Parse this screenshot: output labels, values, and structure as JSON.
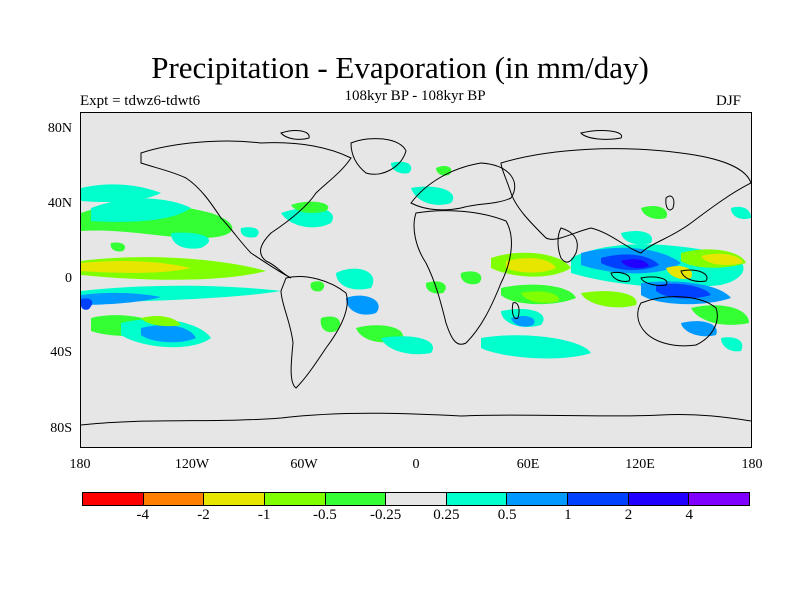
{
  "title": "Precipitation - Evaporation (in mm/day)",
  "subtitle": "108kyr BP - 108kyr BP",
  "expt": "Expt = tdwz6-tdwt6",
  "season": "DJF",
  "y_axis": [
    "80N",
    "40N",
    "0",
    "40S",
    "80S"
  ],
  "x_axis": [
    "180",
    "120W",
    "60W",
    "0",
    "60E",
    "120E",
    "180"
  ],
  "colorbar": {
    "colors": [
      "#ff0000",
      "#ff8000",
      "#e6e600",
      "#80ff00",
      "#33ff33",
      "#e6e6e6",
      "#00ffcc",
      "#0099ff",
      "#0040ff",
      "#2200ff",
      "#8000ff"
    ],
    "labels": [
      "-4",
      "-2",
      "-1",
      "-0.5",
      "-0.25",
      "0.25",
      "0.5",
      "1",
      "2",
      "4"
    ]
  },
  "legend_colors": {
    "ocean_bg": "#e6e6e6",
    "land_line": "#000000"
  }
}
